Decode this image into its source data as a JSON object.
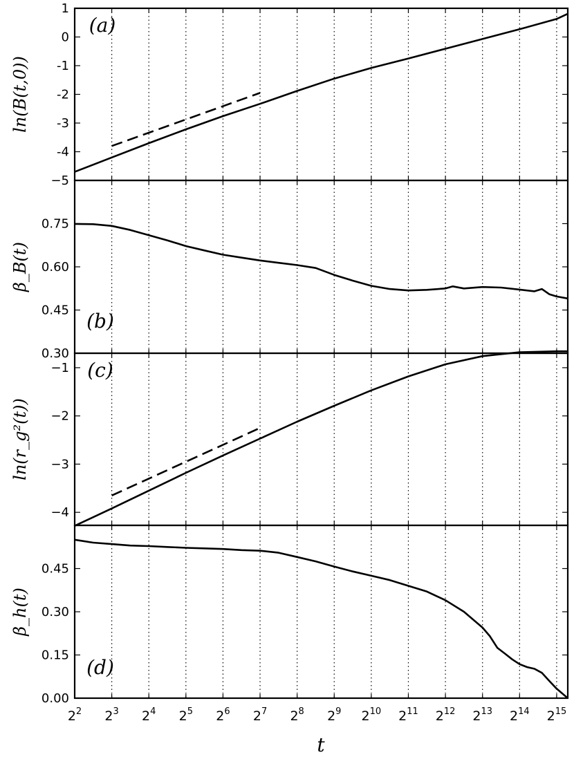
{
  "chart_data": [
    {
      "panel": "(a)",
      "type": "line",
      "ylabel": "ln(B(t,0))",
      "xlabel": "",
      "xscale": "log2",
      "xlim": [
        2,
        15.3
      ],
      "ylim": [
        -5,
        1
      ],
      "yticks": [
        1,
        0,
        -1,
        -2,
        -3,
        -4,
        -5
      ],
      "ytick_labels": [
        "1",
        "0",
        "-1",
        "-2",
        "-3",
        "-4",
        "−5"
      ],
      "grid": "vertical dotted lines at powers of two",
      "series": [
        {
          "style": "solid",
          "x": [
            2,
            3,
            4,
            5,
            6,
            7,
            8,
            9,
            10,
            11,
            12,
            13,
            14,
            15,
            15.3
          ],
          "y": [
            -4.7,
            -4.2,
            -3.7,
            -3.22,
            -2.76,
            -2.33,
            -1.88,
            -1.45,
            -1.08,
            -0.75,
            -0.41,
            -0.07,
            0.27,
            0.63,
            0.81
          ]
        },
        {
          "style": "dashed",
          "x": [
            3,
            7
          ],
          "y": [
            -3.8,
            -1.95
          ]
        }
      ]
    },
    {
      "panel": "(b)",
      "type": "line",
      "ylabel": "β_B(t)",
      "xscale": "log2",
      "xlim": [
        2,
        15.3
      ],
      "ylim": [
        0.3,
        0.9
      ],
      "yticks": [
        0.75,
        0.6,
        0.45,
        0.3
      ],
      "ytick_labels": [
        "0.75",
        "0.60",
        "0.45",
        "0.30"
      ],
      "series": [
        {
          "style": "solid",
          "x": [
            2,
            2.5,
            3,
            3.5,
            4,
            4.5,
            5,
            5.5,
            6,
            6.5,
            7,
            7.5,
            8,
            8.5,
            9,
            9.5,
            10,
            10.5,
            11,
            11.5,
            12,
            12.2,
            12.5,
            13,
            13.5,
            14,
            14.4,
            14.6,
            14.8,
            15,
            15.3
          ],
          "y": [
            0.749,
            0.748,
            0.742,
            0.728,
            0.71,
            0.692,
            0.672,
            0.657,
            0.642,
            0.632,
            0.622,
            0.614,
            0.606,
            0.596,
            0.572,
            0.552,
            0.534,
            0.523,
            0.518,
            0.52,
            0.525,
            0.532,
            0.525,
            0.53,
            0.528,
            0.521,
            0.515,
            0.523,
            0.505,
            0.497,
            0.49
          ]
        }
      ]
    },
    {
      "panel": "(c)",
      "type": "line",
      "ylabel": "ln(r_g²(t))",
      "xscale": "log2",
      "xlim": [
        2,
        15.3
      ],
      "ylim": [
        -4.27,
        -0.7
      ],
      "yticks": [
        -1,
        -2,
        -3,
        -4
      ],
      "ytick_labels": [
        "−1",
        "−2",
        "−3",
        "−4"
      ],
      "series": [
        {
          "style": "solid",
          "x": [
            2,
            3,
            4,
            5,
            6,
            7,
            8,
            9,
            10,
            11,
            12,
            13,
            14,
            15,
            15.3
          ],
          "y": [
            -4.28,
            -3.92,
            -3.55,
            -3.18,
            -2.82,
            -2.47,
            -2.12,
            -1.79,
            -1.47,
            -1.18,
            -0.93,
            -0.76,
            -0.68,
            -0.66,
            -0.66
          ]
        },
        {
          "style": "dashed",
          "x": [
            3,
            7
          ],
          "y": [
            -3.65,
            -2.25
          ]
        }
      ]
    },
    {
      "panel": "(d)",
      "type": "line",
      "ylabel": "β_h(t)",
      "xlabel": "t",
      "xscale": "log2",
      "xlim": [
        2,
        15.3
      ],
      "ylim": [
        0.0,
        0.6
      ],
      "yticks": [
        0.45,
        0.3,
        0.15,
        0.0
      ],
      "ytick_labels": [
        "0.45",
        "0.30",
        "0.15",
        "0.00"
      ],
      "xticks": [
        2,
        3,
        4,
        5,
        6,
        7,
        8,
        9,
        10,
        11,
        12,
        13,
        14,
        15
      ],
      "series": [
        {
          "style": "solid",
          "x": [
            2,
            2.5,
            3,
            3.5,
            4,
            4.5,
            5,
            5.5,
            6,
            6.5,
            7,
            7.5,
            8,
            8.5,
            9,
            9.5,
            10,
            10.5,
            11,
            11.5,
            12,
            12.5,
            13,
            13.2,
            13.4,
            13.6,
            13.8,
            14,
            14.2,
            14.4,
            14.6,
            14.8,
            15,
            15.3
          ],
          "y": [
            0.55,
            0.54,
            0.535,
            0.53,
            0.528,
            0.525,
            0.522,
            0.52,
            0.518,
            0.514,
            0.512,
            0.505,
            0.49,
            0.475,
            0.457,
            0.44,
            0.425,
            0.41,
            0.39,
            0.37,
            0.34,
            0.3,
            0.245,
            0.215,
            0.175,
            0.155,
            0.135,
            0.118,
            0.108,
            0.102,
            0.088,
            0.06,
            0.033,
            0.0
          ]
        }
      ]
    }
  ],
  "panel_tags": [
    "(a)",
    "(b)",
    "(c)",
    "(d)"
  ],
  "ylabels": [
    "ln(B(t,0))",
    "β_B(t)",
    "ln(r_g²(t))",
    "β_h(t)"
  ],
  "xlabel": "t",
  "xtick_base": "2",
  "xtick_exponents": [
    "2",
    "3",
    "4",
    "5",
    "6",
    "7",
    "8",
    "9",
    "10",
    "11",
    "12",
    "13",
    "14",
    "15"
  ]
}
